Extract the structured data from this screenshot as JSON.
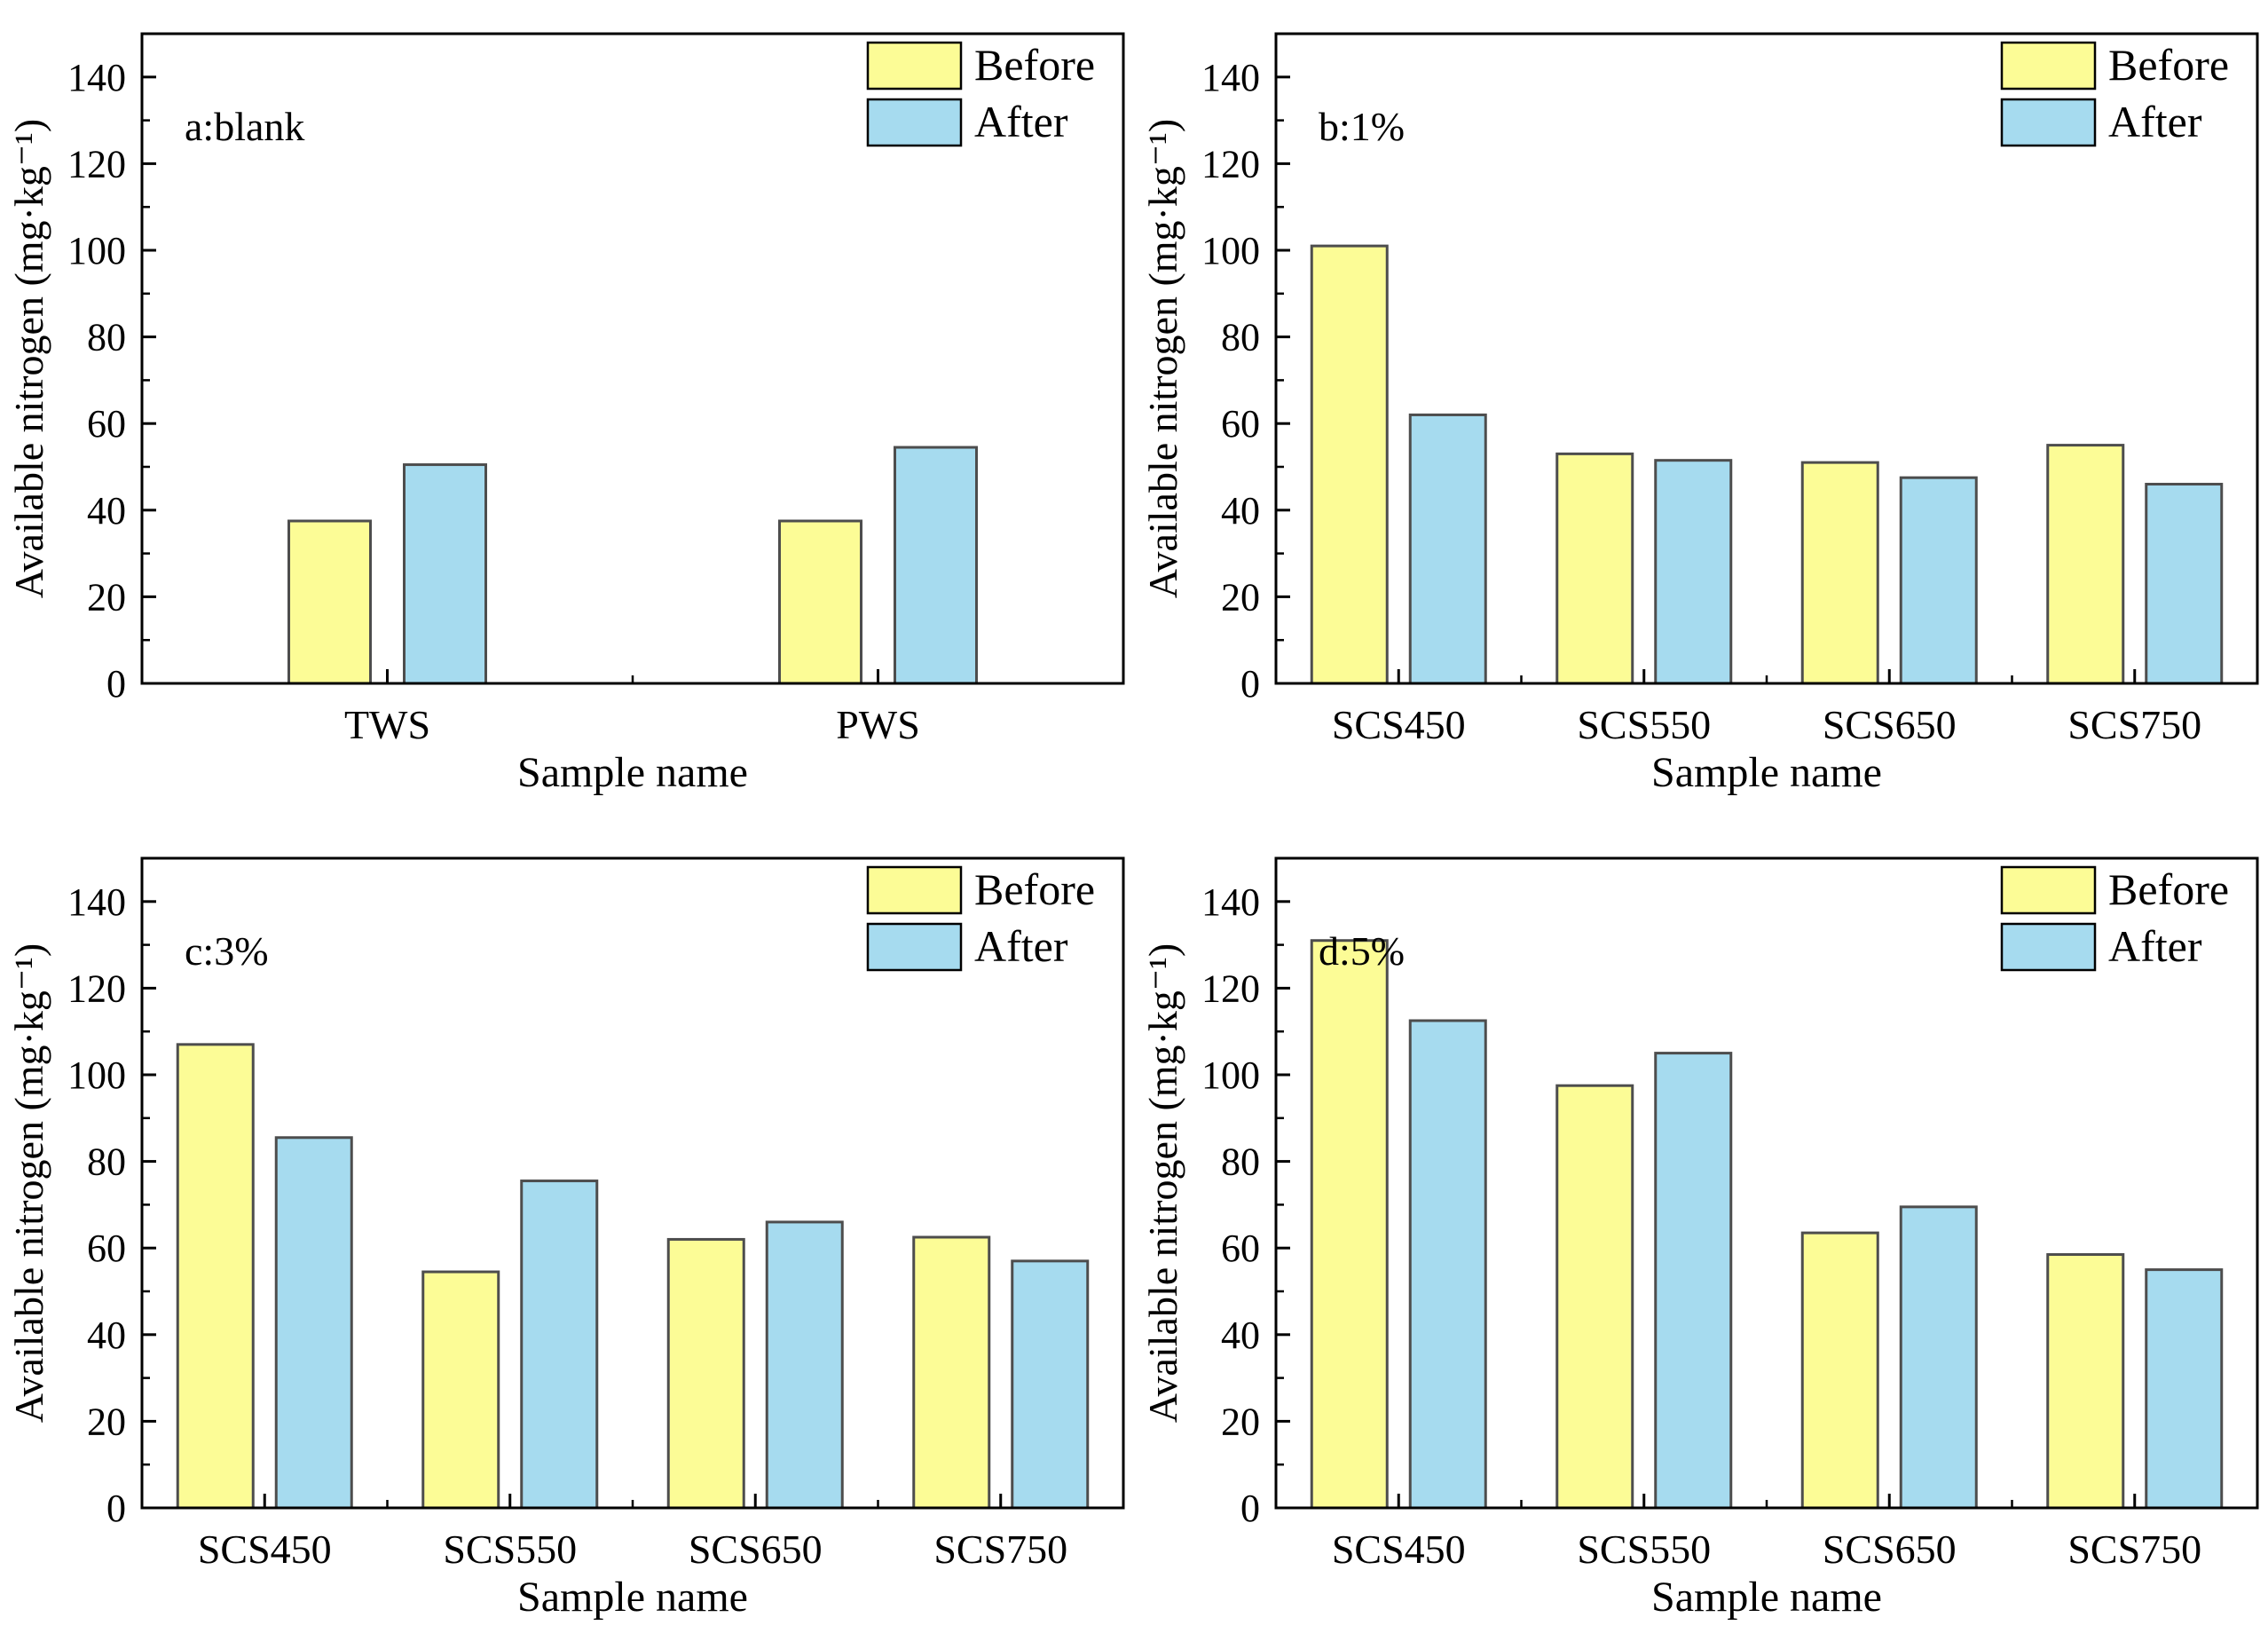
{
  "figure": {
    "background": "#ffffff",
    "rows": 2,
    "cols": 2
  },
  "colors": {
    "before": "#FCFC96",
    "after": "#A6DBEF",
    "bar_stroke": "#4d4d4d",
    "axis": "#000000",
    "text": "#000000"
  },
  "legend": {
    "items": [
      {
        "label": "Before",
        "color_key": "before"
      },
      {
        "label": "After",
        "color_key": "after"
      }
    ],
    "position": "top-right"
  },
  "chart_data": [
    {
      "type": "bar",
      "panel_id": "a",
      "panel_label": "a:blank",
      "title": "",
      "xlabel": "Sample name",
      "ylabel": "Available nitrogen (mg·kg⁻¹)",
      "ylim": [
        0,
        150
      ],
      "yticks": [
        0,
        20,
        40,
        60,
        80,
        100,
        120,
        140
      ],
      "yminor_step": 10,
      "grid": false,
      "legend_position": "top-right",
      "categories": [
        "TWS",
        "PWS"
      ],
      "series": [
        {
          "name": "Before",
          "values": [
            37.5,
            37.5
          ]
        },
        {
          "name": "After",
          "values": [
            50.5,
            54.5
          ]
        }
      ]
    },
    {
      "type": "bar",
      "panel_id": "b",
      "panel_label": "b:1%",
      "title": "",
      "xlabel": "Sample name",
      "ylabel": "Available nitrogen (mg·kg⁻¹)",
      "ylim": [
        0,
        150
      ],
      "yticks": [
        0,
        20,
        40,
        60,
        80,
        100,
        120,
        140
      ],
      "yminor_step": 10,
      "grid": false,
      "legend_position": "top-right",
      "categories": [
        "SCS450",
        "SCS550",
        "SCS650",
        "SCS750"
      ],
      "series": [
        {
          "name": "Before",
          "values": [
            101,
            53,
            51,
            55
          ]
        },
        {
          "name": "After",
          "values": [
            62,
            51.5,
            47.5,
            46
          ]
        }
      ]
    },
    {
      "type": "bar",
      "panel_id": "c",
      "panel_label": "c:3%",
      "title": "",
      "xlabel": "Sample name",
      "ylabel": "Available nitrogen (mg·kg⁻¹)",
      "ylim": [
        0,
        150
      ],
      "yticks": [
        0,
        20,
        40,
        60,
        80,
        100,
        120,
        140
      ],
      "yminor_step": 10,
      "grid": false,
      "legend_position": "top-right",
      "categories": [
        "SCS450",
        "SCS550",
        "SCS650",
        "SCS750"
      ],
      "series": [
        {
          "name": "Before",
          "values": [
            107,
            54.5,
            62,
            62.5
          ]
        },
        {
          "name": "After",
          "values": [
            85.5,
            75.5,
            66,
            57
          ]
        }
      ]
    },
    {
      "type": "bar",
      "panel_id": "d",
      "panel_label": "d:5%",
      "title": "",
      "xlabel": "Sample name",
      "ylabel": "Available nitrogen (mg·kg⁻¹)",
      "ylim": [
        0,
        150
      ],
      "yticks": [
        0,
        20,
        40,
        60,
        80,
        100,
        120,
        140
      ],
      "yminor_step": 10,
      "grid": false,
      "legend_position": "top-right",
      "categories": [
        "SCS450",
        "SCS550",
        "SCS650",
        "SCS750"
      ],
      "series": [
        {
          "name": "Before",
          "values": [
            131,
            97.5,
            63.5,
            58.5
          ]
        },
        {
          "name": "After",
          "values": [
            112.5,
            105,
            69.5,
            55
          ]
        }
      ]
    }
  ]
}
